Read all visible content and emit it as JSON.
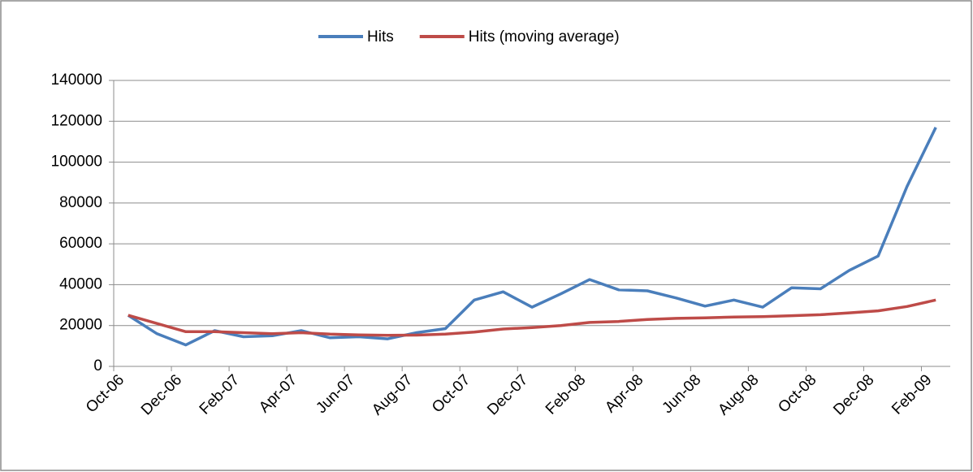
{
  "chart_data": {
    "type": "line",
    "categories": [
      "Oct-06",
      null,
      "Dec-06",
      null,
      "Feb-07",
      null,
      "Apr-07",
      null,
      "Jun-07",
      null,
      "Aug-07",
      null,
      "Oct-07",
      null,
      "Dec-07",
      null,
      "Feb-08",
      null,
      "Apr-08",
      null,
      "Jun-08",
      null,
      "Aug-08",
      null,
      "Oct-08",
      null,
      "Dec-08",
      null,
      "Feb-09"
    ],
    "series": [
      {
        "name": "Hits",
        "color": "#4a7ebb",
        "values": [
          25000,
          16000,
          10500,
          17500,
          14500,
          15000,
          17500,
          14000,
          14500,
          13500,
          16500,
          18500,
          32500,
          36500,
          29000,
          35500,
          42500,
          37500,
          37000,
          33500,
          29500,
          32500,
          29000,
          38500,
          38000,
          47000,
          54000,
          88000,
          117000
        ]
      },
      {
        "name": "Hits (moving average)",
        "color": "#be4b48",
        "values": [
          25000,
          21000,
          17000,
          17000,
          16500,
          16000,
          16500,
          15800,
          15400,
          15200,
          15300,
          15800,
          16800,
          18300,
          19000,
          20000,
          21500,
          22000,
          23000,
          23500,
          23800,
          24200,
          24400,
          24800,
          25300,
          26200,
          27200,
          29300,
          32500
        ]
      }
    ],
    "ylim": [
      0,
      140000
    ],
    "yticks": [
      0,
      20000,
      40000,
      60000,
      80000,
      100000,
      120000,
      140000
    ],
    "grid": true,
    "legend": "top"
  }
}
